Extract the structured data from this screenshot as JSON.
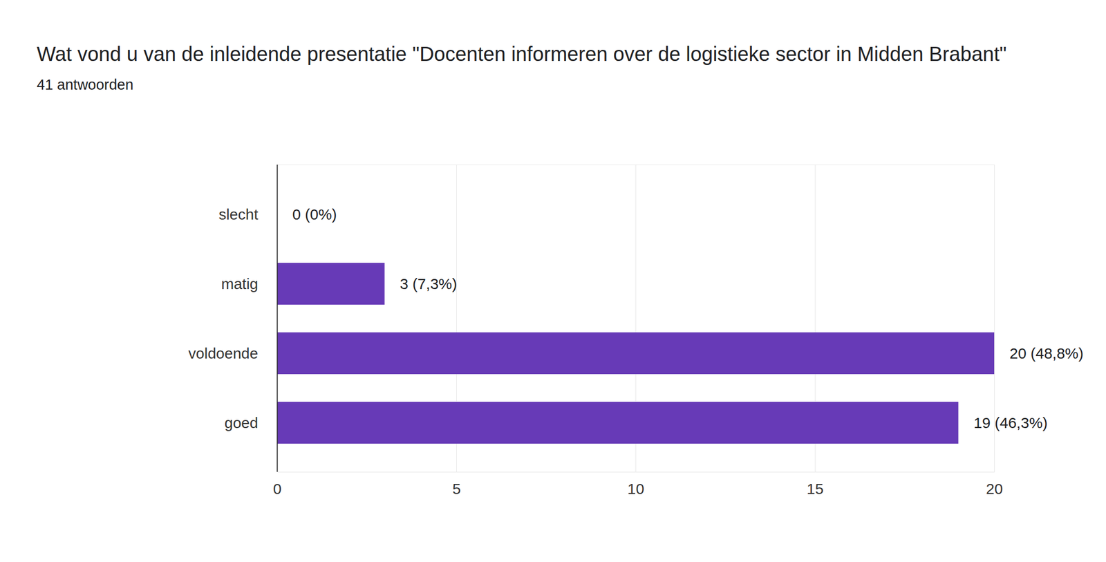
{
  "chart_data": {
    "type": "bar",
    "orientation": "horizontal",
    "title": "Wat vond u van de inleidende presentatie \"Docenten informeren over de logistieke sector in Midden Brabant\"",
    "subtitle": "41 antwoorden",
    "categories": [
      "slecht",
      "matig",
      "voldoende",
      "goed"
    ],
    "values": [
      0,
      3,
      20,
      19
    ],
    "value_labels": [
      "0 (0%)",
      "3 (7,3%)",
      "20 (48,8%)",
      "19 (46,3%)"
    ],
    "data_labels": true,
    "color": "#673ab7",
    "xlim": [
      0,
      20
    ],
    "xticks": [
      0,
      5,
      10,
      15,
      20
    ],
    "grid": true
  }
}
